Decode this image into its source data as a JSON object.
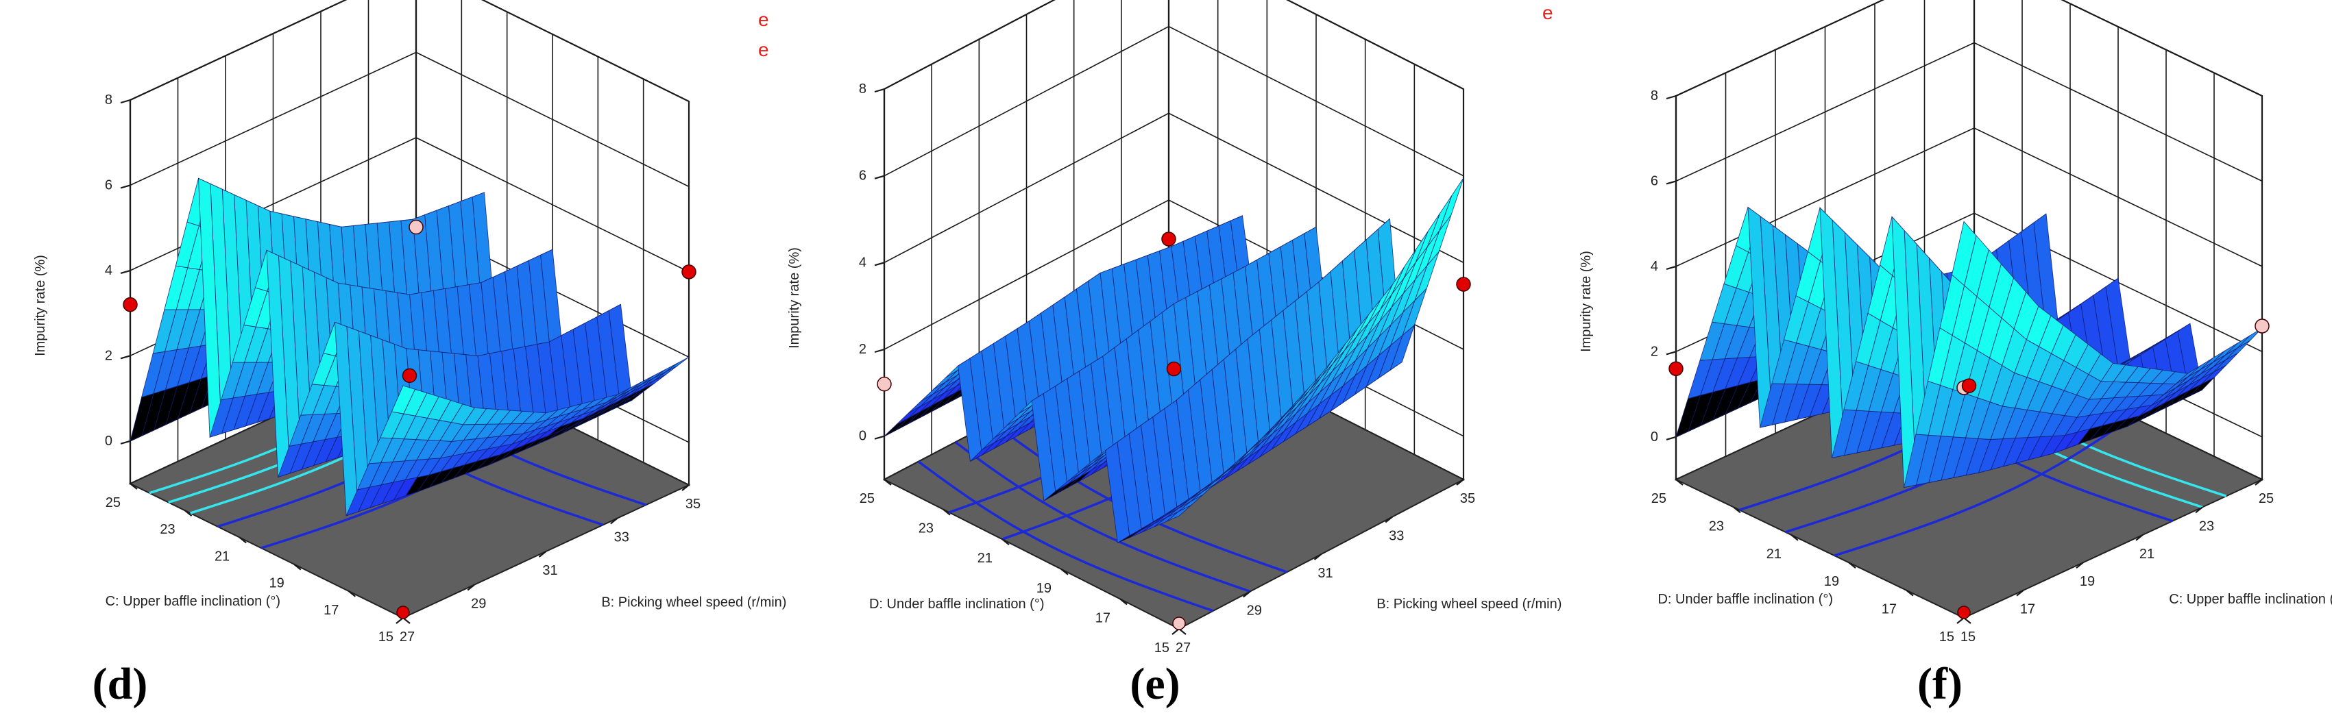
{
  "stray_text": [
    "e",
    "e",
    "e"
  ],
  "colors": {
    "floor": "#5f5f5f",
    "surface_low": "#1f2ff0",
    "surface_high": "#18f0f0",
    "mesh": "#121a6e",
    "design_point_red": "#e00000",
    "design_point_pink": "#f6c9c9",
    "contour_dark": "#1b2ad6",
    "contour_light": "#35e6ee"
  },
  "chart_data": [
    {
      "type": "surface3d",
      "panel_label": "(d)",
      "zlabel": "Impurity rate (%)",
      "xlabel": "B: Picking wheel speed (r/min)",
      "ylabel": "C: Upper baffle inclination (°)",
      "x_ticks": [
        "27",
        "29",
        "31",
        "33",
        "35"
      ],
      "y_ticks": [
        "15",
        "17",
        "19",
        "21",
        "23",
        "25"
      ],
      "z_ticks": [
        "0",
        "2",
        "4",
        "6",
        "8"
      ],
      "xlim": [
        27,
        35
      ],
      "ylim": [
        15,
        25
      ],
      "zlim": [
        -1,
        8
      ],
      "surface": {
        "x": [
          27,
          29,
          31,
          33,
          35
        ],
        "y": [
          15,
          17.5,
          20,
          22.5,
          25
        ],
        "z": [
          [
            2.1,
            1.45,
            1.0,
            0.85,
            0.9
          ],
          [
            2.35,
            1.7,
            1.25,
            1.05,
            1.1
          ],
          [
            2.8,
            2.05,
            1.55,
            1.3,
            1.35
          ],
          [
            3.25,
            2.45,
            1.9,
            1.65,
            1.6
          ],
          [
            3.7,
            2.95,
            2.35,
            2.0,
            1.9
          ]
        ]
      },
      "design_points": [
        {
          "x": 35,
          "y": 15,
          "z": 4.0,
          "marker": "red"
        },
        {
          "x": 27,
          "y": 25,
          "z": 3.2,
          "marker": "red"
        },
        {
          "x": 31,
          "y": 20,
          "z": 1.55,
          "marker": "red"
        },
        {
          "x": 35,
          "y": 25,
          "z": 1.9,
          "marker": "pink"
        },
        {
          "x": 27,
          "y": 15,
          "z": -1.0,
          "marker": "red"
        }
      ],
      "contours": [
        {
          "dir": "y",
          "pos": 0.93,
          "color": "light"
        },
        {
          "dir": "y",
          "pos": 0.86,
          "color": "light"
        },
        {
          "dir": "y",
          "pos": 0.78,
          "color": "light"
        },
        {
          "dir": "y",
          "pos": 0.68,
          "color": "dark"
        },
        {
          "dir": "y",
          "pos": 0.52,
          "color": "dark"
        },
        {
          "dir": "x",
          "pos": 0.85,
          "color": "dark"
        },
        {
          "dir": "x",
          "pos": 0.7,
          "color": "dark"
        }
      ]
    },
    {
      "type": "surface3d",
      "panel_label": "(e)",
      "zlabel": "Impurity rate (%)",
      "xlabel": "B: Picking wheel speed (r/min)",
      "ylabel": "D: Under baffle inclination (°)",
      "x_ticks": [
        "27",
        "29",
        "31",
        "33",
        "35"
      ],
      "y_ticks": [
        "15",
        "17",
        "19",
        "21",
        "23",
        "25"
      ],
      "z_ticks": [
        "0",
        "2",
        "4",
        "6",
        "8"
      ],
      "xlim": [
        27,
        35
      ],
      "ylim": [
        15,
        25
      ],
      "zlim": [
        -1,
        8
      ],
      "surface": {
        "x": [
          27,
          29,
          31,
          33,
          35
        ],
        "y": [
          15,
          17.5,
          20,
          22.5,
          25
        ],
        "z": [
          [
            0.6,
            1.0,
            1.6,
            2.4,
            3.5
          ],
          [
            1.0,
            1.2,
            1.55,
            1.95,
            2.45
          ],
          [
            1.25,
            1.35,
            1.55,
            1.6,
            1.7
          ],
          [
            1.28,
            1.35,
            1.5,
            1.45,
            1.4
          ],
          [
            1.2,
            1.3,
            1.4,
            1.2,
            1.1
          ]
        ]
      },
      "design_points": [
        {
          "x": 35,
          "y": 15,
          "z": 3.5,
          "marker": "red"
        },
        {
          "x": 31,
          "y": 20,
          "z": 1.55,
          "marker": "red"
        },
        {
          "x": 27,
          "y": 25,
          "z": 1.2,
          "marker": "pink"
        },
        {
          "x": 35,
          "y": 25,
          "z": 1.1,
          "marker": "red"
        },
        {
          "x": 27,
          "y": 15,
          "z": -1.0,
          "marker": "pink"
        }
      ],
      "contours": [
        {
          "dir": "y",
          "pos": 0.78,
          "color": "dark"
        },
        {
          "dir": "y",
          "pos": 0.6,
          "color": "dark"
        },
        {
          "dir": "x",
          "pos": 0.38,
          "color": "dark"
        },
        {
          "dir": "x",
          "pos": 0.25,
          "color": "dark"
        },
        {
          "dir": "x",
          "pos": 0.12,
          "color": "dark"
        }
      ]
    },
    {
      "type": "surface3d",
      "panel_label": "(f)",
      "zlabel": "Impurity rate (%)",
      "xlabel": "C: Upper baffle inclination (°)",
      "ylabel": "D: Under baffle inclination (°)",
      "x_ticks": [
        "15",
        "17",
        "19",
        "21",
        "23",
        "25"
      ],
      "y_ticks": [
        "15",
        "17",
        "19",
        "21",
        "23",
        "25"
      ],
      "z_ticks": [
        "0",
        "2",
        "4",
        "6",
        "8"
      ],
      "xlim": [
        15,
        25
      ],
      "ylim": [
        15,
        25
      ],
      "zlim": [
        -1,
        8
      ],
      "surface": {
        "x": [
          15,
          17.5,
          20,
          22.5,
          25
        ],
        "y": [
          15,
          17.5,
          20,
          22.5,
          25
        ],
        "z": [
          [
            4.4,
            3.0,
            2.0,
            1.5,
            1.6
          ],
          [
            3.9,
            2.5,
            1.35,
            0.8,
            0.95
          ],
          [
            3.7,
            2.35,
            1.2,
            0.75,
            0.9
          ],
          [
            3.3,
            2.1,
            1.25,
            0.95,
            1.2
          ],
          [
            2.9,
            2.0,
            1.5,
            1.4,
            1.6
          ]
        ]
      },
      "design_points": [
        {
          "x": 15,
          "y": 15,
          "z": 4.4,
          "marker": "pink"
        },
        {
          "x": 25,
          "y": 15,
          "z": 2.6,
          "marker": "pink"
        },
        {
          "x": 20,
          "y": 20,
          "z": 1.2,
          "marker": "red"
        },
        {
          "x": 15,
          "y": 25,
          "z": 1.6,
          "marker": "red"
        },
        {
          "x": 15,
          "y": 15,
          "z": -1.0,
          "marker": "red"
        }
      ],
      "contours": [
        {
          "dir": "x",
          "pos": 0.88,
          "color": "light"
        },
        {
          "dir": "x",
          "pos": 0.8,
          "color": "light"
        },
        {
          "dir": "x",
          "pos": 0.7,
          "color": "dark"
        },
        {
          "dir": "y",
          "pos": 0.78,
          "color": "dark"
        },
        {
          "dir": "y",
          "pos": 0.62,
          "color": "dark"
        },
        {
          "dir": "y",
          "pos": 0.45,
          "color": "dark"
        }
      ]
    }
  ]
}
